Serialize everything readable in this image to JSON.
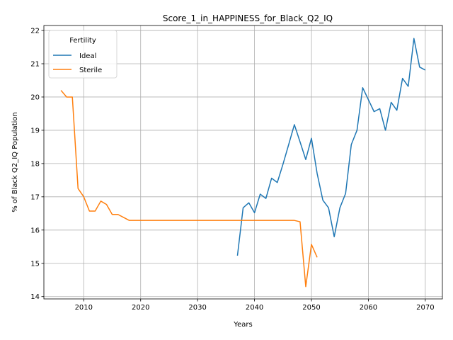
{
  "chart_data": {
    "type": "line",
    "title": "Score_1_in_HAPPINESS_for_Black_Q2_IQ",
    "xlabel": "Years",
    "ylabel": "% of Black Q2_IQ Population",
    "xlim": [
      2003,
      2073
    ],
    "ylim": [
      13.93,
      22.15
    ],
    "xticks": [
      2010,
      2020,
      2030,
      2040,
      2050,
      2060,
      2070
    ],
    "yticks": [
      14,
      15,
      16,
      17,
      18,
      19,
      20,
      21,
      22
    ],
    "grid": true,
    "legend": {
      "title": "Fertility",
      "placement": "upper-left"
    },
    "series": [
      {
        "name": "Ideal",
        "color": "#1f77b4",
        "x": [
          2037,
          2038,
          2039,
          2040,
          2041,
          2042,
          2043,
          2044,
          2045,
          2046,
          2047,
          2048,
          2049,
          2050,
          2051,
          2052,
          2053,
          2054,
          2055,
          2056,
          2057,
          2058,
          2059,
          2060,
          2061,
          2062,
          2063,
          2064,
          2065,
          2066,
          2067,
          2068,
          2069,
          2070
        ],
        "y": [
          15.23,
          16.67,
          16.82,
          16.52,
          17.08,
          16.95,
          17.56,
          17.43,
          17.98,
          18.57,
          19.17,
          18.65,
          18.12,
          18.76,
          17.7,
          16.9,
          16.67,
          15.8,
          16.67,
          17.1,
          18.57,
          19.0,
          20.28,
          19.92,
          19.56,
          19.65,
          19.0,
          19.84,
          19.6,
          20.56,
          20.32,
          21.76,
          20.9,
          20.81
        ]
      },
      {
        "name": "Sterile",
        "color": "#ff7f0e",
        "x": [
          2006,
          2007,
          2008,
          2009,
          2010,
          2011,
          2012,
          2013,
          2014,
          2015,
          2016,
          2017,
          2018,
          2019,
          2020,
          2025,
          2030,
          2035,
          2040,
          2045,
          2047,
          2048,
          2049,
          2050,
          2051
        ],
        "y": [
          20.2,
          20.0,
          20.0,
          17.25,
          17.0,
          16.57,
          16.57,
          16.87,
          16.77,
          16.47,
          16.47,
          16.38,
          16.29,
          16.29,
          16.29,
          16.29,
          16.29,
          16.29,
          16.29,
          16.29,
          16.29,
          16.25,
          14.3,
          15.57,
          15.18
        ]
      }
    ]
  }
}
